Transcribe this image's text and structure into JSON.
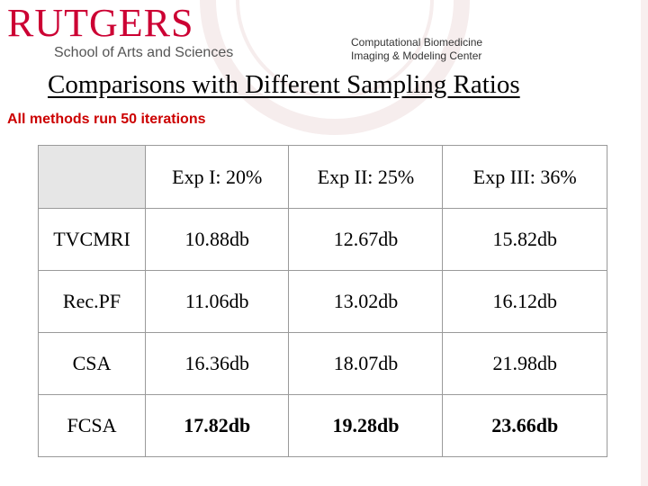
{
  "header": {
    "logo_word": "RUTGERS",
    "logo_sub": "School of Arts and Sciences",
    "center_line1": "Computational Biomedicine",
    "center_line2": "Imaging & Modeling Center"
  },
  "title": "Comparisons with Different Sampling Ratios",
  "subtitle": "All methods run 50 iterations",
  "table": {
    "columns": [
      "",
      "Exp I: 20%",
      "Exp II: 25%",
      "Exp III: 36%"
    ],
    "rows": [
      {
        "method": "TVCMRI",
        "values": [
          "10.88db",
          "12.67db",
          "15.82db"
        ]
      },
      {
        "method": "Rec.PF",
        "values": [
          "11.06db",
          "13.02db",
          "16.12db"
        ]
      },
      {
        "method": "CSA",
        "values": [
          "16.36db",
          "18.07db",
          "21.98db"
        ]
      },
      {
        "method": "FCSA",
        "values": [
          "17.82db",
          "19.28db",
          "23.66db"
        ]
      }
    ]
  },
  "colors": {
    "brand_red": "#cc0033",
    "subtitle_red": "#cc0000",
    "header_cell": "#e6e6e6"
  }
}
